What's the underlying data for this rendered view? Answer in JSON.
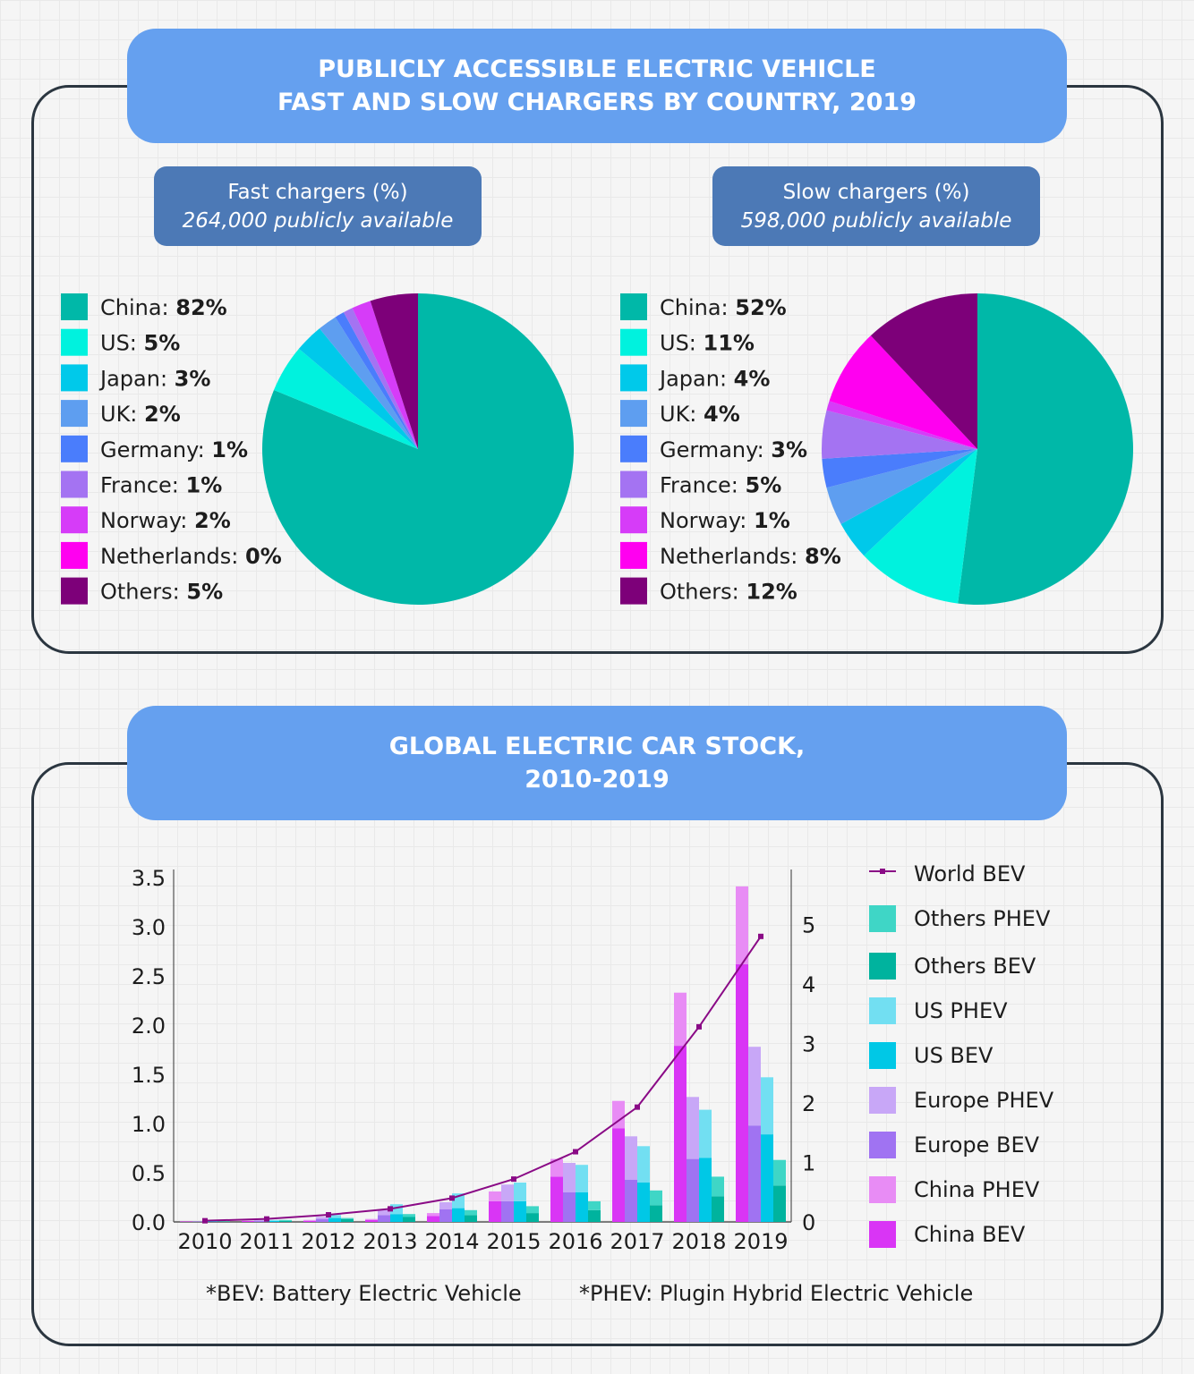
{
  "top_section": {
    "title_line1": "PUBLICLY ACCESSIBLE ELECTRIC VEHICLE",
    "title_line2": "FAST AND SLOW CHARGERS BY COUNTRY, 2019",
    "fast": {
      "heading": "Fast chargers (%)",
      "subheading": "264,000 publicly available"
    },
    "slow": {
      "heading": "Slow chargers (%)",
      "subheading": "598,000 publicly available"
    }
  },
  "bottom_section": {
    "title_line1": "GLOBAL ELECTRIC CAR STOCK,",
    "title_line2": "2010-2019",
    "footnote_bev": "*BEV: Battery Electric Vehicle",
    "footnote_phev": "*PHEV: Plugin Hybrid Electric Vehicle"
  },
  "chart_data": [
    {
      "type": "pie",
      "title": "Fast chargers (%)",
      "categories": [
        "China",
        "US",
        "Japan",
        "UK",
        "Germany",
        "France",
        "Norway",
        "Netherlands",
        "Others"
      ],
      "values": [
        82,
        5,
        3,
        2,
        1,
        1,
        2,
        0,
        5
      ],
      "colors": [
        "#00b8a8",
        "#00f2de",
        "#00c9ea",
        "#5e9ef0",
        "#4a7dfc",
        "#a473f2",
        "#d63cf8",
        "#ff00f0",
        "#7d0079"
      ],
      "legend": "left"
    },
    {
      "type": "pie",
      "title": "Slow chargers (%)",
      "categories": [
        "China",
        "US",
        "Japan",
        "UK",
        "Germany",
        "France",
        "Norway",
        "Netherlands",
        "Others"
      ],
      "values": [
        52,
        11,
        4,
        4,
        3,
        5,
        1,
        8,
        12
      ],
      "colors": [
        "#00b8a8",
        "#00f2de",
        "#00c9ea",
        "#5e9ef0",
        "#4a7dfc",
        "#a473f2",
        "#d63cf8",
        "#ff00f0",
        "#7d0079"
      ],
      "legend": "left"
    },
    {
      "type": "bar",
      "stacked_pairs": true,
      "categories": [
        "2010",
        "2011",
        "2012",
        "2013",
        "2014",
        "2015",
        "2016",
        "2017",
        "2018",
        "2019"
      ],
      "ylim": [
        0,
        3.6
      ],
      "yticks": [
        "0.0",
        "0.5",
        "1.0",
        "1.5",
        "2.0",
        "2.5",
        "3.0",
        "3.5"
      ],
      "y2lim": [
        0,
        5.9
      ],
      "y2ticks": [
        "0",
        "1",
        "2",
        "3",
        "4",
        "5"
      ],
      "legend": "right",
      "groups": [
        "China",
        "Europe",
        "US",
        "Others"
      ],
      "series": [
        {
          "name": "China BEV",
          "group": "China",
          "color": "#d935f5",
          "values": [
            0.005,
            0.01,
            0.01,
            0.02,
            0.06,
            0.21,
            0.46,
            0.95,
            1.79,
            2.62
          ]
        },
        {
          "name": "China PHEV",
          "group": "China",
          "color": "#e88cf5",
          "values": [
            0,
            0,
            0.01,
            0.01,
            0.03,
            0.1,
            0.18,
            0.28,
            0.54,
            0.79
          ]
        },
        {
          "name": "Europe BEV",
          "group": "Europe",
          "color": "#a073f2",
          "values": [
            0.005,
            0.01,
            0.03,
            0.07,
            0.13,
            0.21,
            0.3,
            0.43,
            0.64,
            0.98
          ]
        },
        {
          "name": "Europe PHEV",
          "group": "Europe",
          "color": "#c8a7f7",
          "values": [
            0,
            0.01,
            0.02,
            0.05,
            0.07,
            0.17,
            0.3,
            0.44,
            0.63,
            0.8
          ]
        },
        {
          "name": "US BEV",
          "group": "US",
          "color": "#00c8e6",
          "values": [
            0.005,
            0.01,
            0.04,
            0.08,
            0.14,
            0.21,
            0.3,
            0.4,
            0.65,
            0.89
          ]
        },
        {
          "name": "US PHEV",
          "group": "US",
          "color": "#72dff2",
          "values": [
            0,
            0.01,
            0.03,
            0.1,
            0.15,
            0.19,
            0.28,
            0.37,
            0.49,
            0.58
          ]
        },
        {
          "name": "Others BEV",
          "group": "Others",
          "color": "#00b39e",
          "values": [
            0.005,
            0.01,
            0.03,
            0.05,
            0.07,
            0.09,
            0.12,
            0.17,
            0.26,
            0.37
          ]
        },
        {
          "name": "Others PHEV",
          "group": "Others",
          "color": "#3fd6c6",
          "values": [
            0,
            0.01,
            0.01,
            0.03,
            0.05,
            0.07,
            0.09,
            0.15,
            0.2,
            0.26
          ]
        },
        {
          "name": "World BEV",
          "type": "line",
          "axis": "right",
          "color": "#8a0a86",
          "values": [
            0.02,
            0.05,
            0.12,
            0.22,
            0.4,
            0.72,
            1.18,
            1.93,
            3.28,
            4.8
          ]
        }
      ],
      "legend_order": [
        "World BEV",
        "Others PHEV",
        "Others BEV",
        "US PHEV",
        "US BEV",
        "Europe PHEV",
        "Europe BEV",
        "China PHEV",
        "China BEV"
      ]
    }
  ]
}
